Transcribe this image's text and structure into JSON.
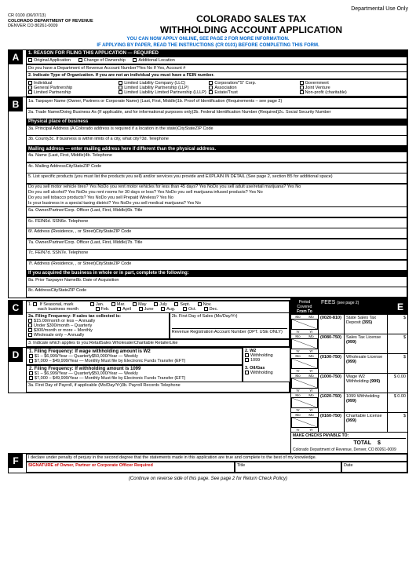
{
  "meta": {
    "dept_use": "Departmental Use Only",
    "form_no": "CR 0100 (06/07/13)",
    "dept": "COLORADO DEPARTMENT OF REVENUE",
    "addr": "DENVER CO 80261-0009",
    "title1": "COLORADO SALES TAX",
    "title2": "WITHHOLDING ACCOUNT APPLICATION",
    "sub1": "YOU CAN NOW APPLY ONLINE, SEE PAGE 2 FOR MORE INFORMATION.",
    "sub2": "IF APPLYING BY PAPER, READ THE INSTRUCTIONS (CR 0101) BEFORE COMPLETING THIS FORM."
  },
  "A": {
    "line1": "1. REASON FOR FILING THIS APPLICATION — REQUIRED",
    "opts": [
      "Original Application",
      "Change of Ownership",
      "Additional Location"
    ],
    "acct_q": "Do you have a Department of Revenue Account Number?Yes No  If Yes, Account #",
    "line2": "2. Indicate Type of Organization. If you are not an individual you must have a FEIN number.",
    "orgs": [
      "Individual",
      "Limited Liability Company (LLC)",
      "Corporation/\"S\" Corp.",
      "Government",
      "General Partnership",
      "Limited Liability Partnership (LLP)",
      "Association",
      "Joint Venture",
      "Limited Partnership",
      "Limited Liability Limited Partnership (LLLP)",
      "Estate/Trust",
      "Non-profit (charitable)"
    ]
  },
  "B": {
    "r1a": "1a. Taxpayer Name (Owner, Partners or Corporate Name) (Last, First, Middle)1b. Proof of Identification (Requirements – see page 2)",
    "r2a": "2a. Trade Name/Doing Business As (If applicable, and for informational purposes only)2b. Federal Identification Number (Required)2c. Social Security Number",
    "phys_hdr": "Physical place of business",
    "r3a": "3a. Principal Address (A Colorado address is required if a location in the state)CityStateZIP Code",
    "r3b": "3b. County3c. If business is within limits of a city, what city?3d. Telephone",
    "mail_hdr": "Mailing address — enter mailing address here if different than the physical address.",
    "r4a": "4a. Name (Last, First, Middle)4b. Telephone",
    "r4c": "4c. Mailing AddressCityStateZIP Code",
    "r5": "5. List specific products (you must list the products you sell) and/or services you provide and EXPLAIN IN DETAIL  (See page 2, section B5 for additional space)",
    "q1": "Do you sell motor vehicle tires?  Yes  NoDo you rent motor vehicles for less than 45 days?  Yes  NoDo you sell adult use/retail marijuana?  Yes  No",
    "q2": "Do you sell alcohol?  Yes  NoDo you rent rooms for 30 days or less?  Yes  NoDo you sell marijuana infused products?  Yes  No",
    "q3": "Do you sell tobacco products?  Yes  NoDo you sell Prepaid Wireless?  Yes  No",
    "q4": "Is your business in a special taxing district?  Yes  NoDo you sell medical marijuana?  Yes  No",
    "r6a": "6a. Owner/Partner/Corp. Officer (Last, First, Middle)6b. Title",
    "r6c": "6c. FEIN6d. SSN6e. Telephone",
    "r6f": "6f. Address (Residence, , or Street)CityStateZIP Code",
    "r7a": "7a. Owner/Partner/Corp. Officer (Last, First, Middle)7b. Title",
    "r7c": "7c. FEIN7d. SSN7e. Telephone",
    "r7f": "7f. Address (Residence, , or Street)CityStateZIP Code",
    "acq_hdr": "If you acquired the business in whole or in part, complete the following:",
    "r8a": "8a. Prior Taxpayer Name8b. Date of Acquisition",
    "r8c": "8c. AddressCityStateZIP Code"
  },
  "C": {
    "line1_a": "1.",
    "line1_b": "If Seasonal, mark",
    "line1_c": "each business month",
    "months": [
      "Jan.",
      "Feb.",
      "Mar.",
      "April",
      "May",
      "June",
      "July",
      "Aug.",
      "Sept.",
      "Oct.",
      "Nov.",
      "Dec."
    ],
    "line2a": "2a. Filing Frequency: If sales tax collected is:",
    "freq": [
      "$15.00/month or less – Annually",
      "Under $300/month – Quarterly",
      "$300/month or more – Monthly",
      "Wholesale only – Annually"
    ],
    "line2b": "2b. First Day of Sales (Mo/Day/Yr)",
    "rev_reg": "Revenue Registration Account Number  (DPT. USE ONLY)",
    "line3": "3. Indicate which applies to you:RetailSales WholesalerCharitable RetailerLike"
  },
  "D": {
    "line1": "1. Filing Frequency: If wage withholding amount is W2",
    "f1": [
      "$1 – $6,999/Year — Quarterly$50,000/Year — Weekly",
      "$7,000 – $49,999/Year — Monthly Must file by Electronic Funds Transfer (EFT)"
    ],
    "line2": "2. Filing Frequency: If withholding amount is 1099",
    "f2": [
      "$1 – $6,999/Year — Quarterly$50,000/Year — Weekly",
      "$7,000 – $49,999/Year — Monthly Must file by Electronic Funds Transfer (EFT)"
    ],
    "r2w2": "2. W2",
    "r2w2o": "Withholding",
    "r21099": "1099",
    "r3og": "3. Oil/Gas",
    "r3ogo": "Withholding",
    "line3a": "3a. First Day of Payroll, if applicable (Mo/Day/Yr)3b. Payroll Records Telephone"
  },
  "fees": {
    "from_to": "From   To",
    "pc_hdr": "Period Covered",
    "title": "FEES",
    "see": "(see page 2)",
    "rows": [
      {
        "acct": "(0020-810)",
        "desc": "State Sales Tax Deposit",
        "num": "(355)",
        "amt": "$"
      },
      {
        "acct": "(0080-750)",
        "desc": "Sales Tax License",
        "num": "(999)",
        "amt": "$"
      },
      {
        "acct": "(0100-750)",
        "desc": "Wholesale License",
        "num": "(999)",
        "amt": "$"
      },
      {
        "acct": "(1000-750)",
        "desc": "Wage W2 Withholding",
        "num": "(999)",
        "amt": "$    0.00"
      },
      {
        "acct": "(1020-750)",
        "desc": "1099 Withholding",
        "num": "(999)",
        "amt": "$    0.00"
      },
      {
        "acct": "(0160-750)",
        "desc": "Charitable License",
        "num": "(999)",
        "amt": "$"
      }
    ],
    "checks": "MAKE CHECKS PAYABLE TO:",
    "checks2": "Colorado Department of Revenue, Denver, CO  80261-0009",
    "total": "TOTAL",
    "total_amt": "$"
  },
  "F": {
    "decl": "I declare under penalty of perjury in the second degree that the statements made in this application are true and complete to the best of my knowledge.",
    "sig": "SIGNATURE of Owner, Partner or Corporate Officer Required",
    "title": "Title",
    "date": "Date"
  },
  "footer": "(Continue on reverse side of this page. See page 2 for Return Check Policy)"
}
